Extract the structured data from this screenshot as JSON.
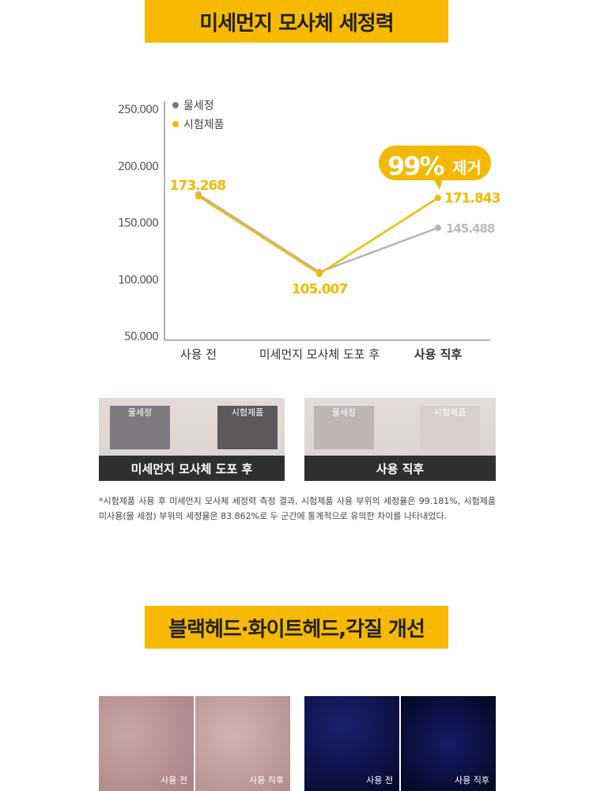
{
  "section1": {
    "title": "미세먼지 모사체 세정력"
  },
  "chart_data": {
    "type": "line",
    "categories": [
      "사용 전",
      "미세먼지 모사체 도포 후",
      "사용 직후"
    ],
    "yticks": [
      "250.000",
      "200.000",
      "150.000",
      "100.000",
      "50.000"
    ],
    "ytick_values": [
      250000,
      200000,
      150000,
      100000,
      50000
    ],
    "ylim": [
      50000,
      250000
    ],
    "legend_position": "top-left",
    "series": [
      {
        "name": "물세정",
        "color": "#b5b5b5",
        "values": [
          175000,
          106500,
          145488
        ],
        "labels": [
          "",
          "",
          "145.488"
        ]
      },
      {
        "name": "시험제품",
        "color": "#f5b800",
        "values": [
          173268,
          105007,
          171843
        ],
        "labels": [
          "173.268",
          "105.007",
          "171.843"
        ]
      }
    ],
    "annotation": {
      "big": "99%",
      "text": "제거"
    }
  },
  "photos": [
    {
      "caption": "미세먼지 모사체 도포 후",
      "left": "물세정",
      "right": "시험제품"
    },
    {
      "caption": "사용 직후",
      "left": "물세정",
      "right": "시험제품"
    }
  ],
  "note": "*시험제품 사용 후 미세먼지 모사체 세정력 측정 결과, 시험제품 사용 부위의 세정율은 99.181%, 시험제품 미사용(물 세정) 부위의 세정율은 83.862%로 두 군간에 통계적으로 유의한 차이를 나타내었다.",
  "section2": {
    "title": "블랙헤드·화이트헤드,각질 개선"
  },
  "skin_photos": [
    {
      "label": "사용 전"
    },
    {
      "label": "사용 직후"
    },
    {
      "label": "사용 전"
    },
    {
      "label": "사용 직후"
    }
  ]
}
